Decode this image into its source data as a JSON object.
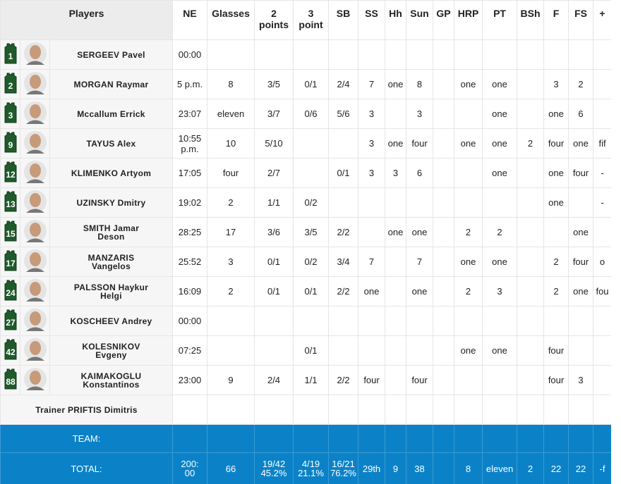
{
  "header": {
    "columns": [
      "Players",
      "NE",
      "Glasses",
      [
        "2",
        "points"
      ],
      [
        "3",
        "point"
      ],
      "SB",
      "SS",
      "Hh",
      "Sun",
      "GP",
      "HRP",
      "PT",
      "BSh",
      "F",
      "FS",
      "+"
    ]
  },
  "players": [
    {
      "number": 1,
      "name": [
        "SERGEEV Pavel"
      ],
      "stats": [
        "00:00",
        null,
        null,
        null,
        null,
        null,
        null,
        null,
        null,
        null,
        null,
        null,
        null,
        null,
        null
      ]
    },
    {
      "number": 2,
      "name": [
        "MORGAN Raymar"
      ],
      "stats": [
        "5 p.m.",
        8,
        "3/5",
        "0/1",
        "2/4",
        7,
        "one",
        8,
        null,
        "one",
        "one",
        null,
        3,
        2,
        null
      ]
    },
    {
      "number": 3,
      "name": [
        "Mccallum Errick"
      ],
      "stats": [
        "23:07",
        "eleven",
        "3/7",
        "0/6",
        "5/6",
        3,
        null,
        3,
        null,
        null,
        "one",
        null,
        "one",
        6,
        null
      ]
    },
    {
      "number": 9,
      "name": [
        "TAYUS Alex"
      ],
      "stats": [
        [
          "10:55",
          "p.m."
        ],
        10,
        "5/10",
        null,
        null,
        3,
        "one",
        "four",
        null,
        "one",
        "one",
        2,
        "four",
        "one",
        "fif"
      ]
    },
    {
      "number": 12,
      "name": [
        "KLIMENKO Artyom"
      ],
      "stats": [
        "17:05",
        "four",
        "2/7",
        null,
        "0/1",
        3,
        3,
        6,
        null,
        null,
        "one",
        null,
        "one",
        "four",
        "-"
      ]
    },
    {
      "number": 13,
      "name": [
        "UZINSKY Dmitry"
      ],
      "stats": [
        "19:02",
        2,
        "1/1",
        "0/2",
        null,
        null,
        null,
        null,
        null,
        null,
        null,
        null,
        "one",
        null,
        "-"
      ]
    },
    {
      "number": 15,
      "name": [
        "SMITH Jamar",
        "Deson"
      ],
      "stats": [
        "28:25",
        17,
        "3/6",
        "3/5",
        "2/2",
        null,
        "one",
        "one",
        null,
        2,
        2,
        null,
        null,
        "one",
        null
      ]
    },
    {
      "number": 17,
      "name": [
        "MANZARIS",
        "Vangelos"
      ],
      "stats": [
        "25:52",
        3,
        "0/1",
        "0/2",
        "3/4",
        7,
        null,
        7,
        null,
        "one",
        "one",
        null,
        2,
        "four",
        "o"
      ]
    },
    {
      "number": 24,
      "name": [
        "PALSSON Haykur",
        "Helgi"
      ],
      "stats": [
        "16:09",
        2,
        "0/1",
        "0/1",
        "2/2",
        "one",
        null,
        "one",
        null,
        2,
        3,
        null,
        2,
        "one",
        "fou"
      ]
    },
    {
      "number": 27,
      "name": [
        "KOSCHEEV Andrey"
      ],
      "stats": [
        "00:00",
        null,
        null,
        null,
        null,
        null,
        null,
        null,
        null,
        null,
        null,
        null,
        null,
        null,
        null
      ]
    },
    {
      "number": 42,
      "name": [
        "KOLESNIKOV",
        "Evgeny"
      ],
      "stats": [
        "07:25",
        null,
        null,
        "0/1",
        null,
        null,
        null,
        null,
        null,
        "one",
        "one",
        null,
        "four",
        null,
        null
      ]
    },
    {
      "number": 88,
      "name": [
        "KAIMAKOGLU",
        "Konstantinos"
      ],
      "stats": [
        "23:00",
        9,
        "2/4",
        "1/1",
        "2/2",
        "four",
        null,
        "four",
        null,
        null,
        null,
        null,
        "four",
        3,
        null
      ]
    }
  ],
  "trainer": "Trainer PRIFTIS Dimitris",
  "team": {
    "label": "TEAM:"
  },
  "total": {
    "label": "TOTAL:",
    "stats": [
      [
        "200:",
        "00"
      ],
      66,
      [
        "19/42",
        "45.2%"
      ],
      [
        "4/19",
        "21.1%"
      ],
      [
        "16/21",
        "76.2%"
      ],
      "29th",
      9,
      38,
      null,
      8,
      "eleven",
      2,
      22,
      22,
      "-f"
    ]
  }
}
